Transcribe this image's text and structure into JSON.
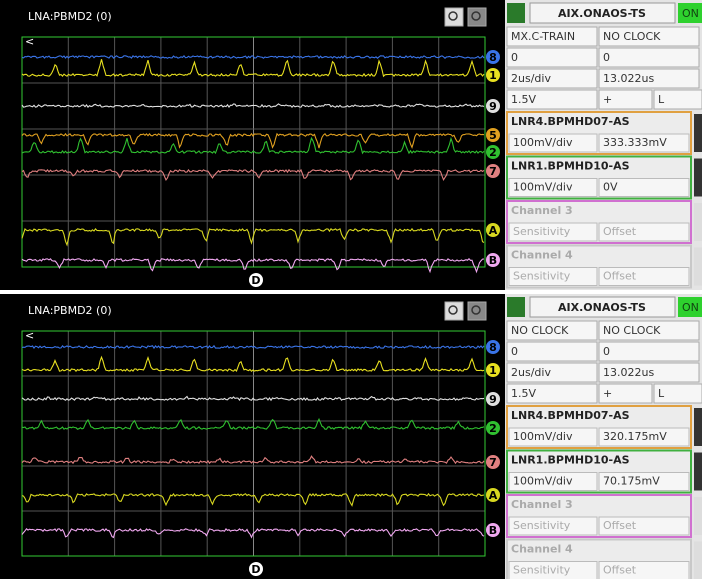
{
  "panels": [
    {
      "scope": {
        "title": "LNA:PBMD2 (0)",
        "trigger": "D",
        "markers": [
          {
            "label": "8",
            "color": "#3a74e8"
          },
          {
            "label": "1",
            "color": "#e8e020"
          },
          {
            "label": "9",
            "color": "#e0e0e0"
          },
          {
            "label": "5",
            "color": "#e0a020"
          },
          {
            "label": "2",
            "color": "#30c030"
          },
          {
            "label": "7",
            "color": "#e08080"
          },
          {
            "label": "A",
            "color": "#d8d820"
          },
          {
            "label": "B",
            "color": "#f0a8f0"
          }
        ]
      },
      "controls": {
        "device": "AIX.ONAOS-TS",
        "status": "ON",
        "rows": [
          [
            "MX.C-TRAIN",
            "NO CLOCK"
          ],
          [
            "0",
            "0"
          ],
          [
            "2us/div",
            "13.022us"
          ],
          [
            "1.5V",
            "+",
            "L"
          ]
        ],
        "channels": [
          {
            "name": "LNR4.BPMHD07-AS",
            "color": "#e0a040",
            "active": true,
            "settings": [
              "100mV/div",
              "333.333mV"
            ]
          },
          {
            "name": "LNR1.BPMHD10-AS",
            "color": "#40b040",
            "active": true,
            "settings": [
              "100mV/div",
              "0V"
            ]
          },
          {
            "name": "Channel 3",
            "color": "#d070d0",
            "active": false,
            "settings": [
              "Sensitivity",
              "Offset"
            ]
          },
          {
            "name": "Channel 4",
            "color": "#c8c8c8",
            "active": false,
            "settings": [
              "Sensitivity",
              "Offset"
            ]
          }
        ]
      }
    },
    {
      "scope": {
        "title": "LNA:PBMD2 (0)",
        "trigger": "D",
        "markers": [
          {
            "label": "8",
            "color": "#3a74e8"
          },
          {
            "label": "1",
            "color": "#e8e020"
          },
          {
            "label": "9",
            "color": "#e0e0e0"
          },
          {
            "label": "2",
            "color": "#30c030"
          },
          {
            "label": "7",
            "color": "#e08080"
          },
          {
            "label": "A",
            "color": "#d8d820"
          },
          {
            "label": "B",
            "color": "#f0a8f0"
          }
        ]
      },
      "controls": {
        "device": "AIX.ONAOS-TS",
        "status": "ON",
        "rows": [
          [
            "NO CLOCK",
            "NO CLOCK"
          ],
          [
            "0",
            "0"
          ],
          [
            "2us/div",
            "13.022us"
          ],
          [
            "1.5V",
            "+",
            "L"
          ]
        ],
        "channels": [
          {
            "name": "LNR4.BPMHD07-AS",
            "color": "#e0a040",
            "active": true,
            "settings": [
              "100mV/div",
              "320.175mV"
            ]
          },
          {
            "name": "LNR1.BPMHD10-AS",
            "color": "#40b040",
            "active": true,
            "settings": [
              "100mV/div",
              "70.175mV"
            ]
          },
          {
            "name": "Channel 3",
            "color": "#d070d0",
            "active": false,
            "settings": [
              "Sensitivity",
              "Offset"
            ]
          },
          {
            "name": "Channel 4",
            "color": "#c8c8c8",
            "active": false,
            "settings": [
              "Sensitivity",
              "Offset"
            ]
          }
        ]
      }
    }
  ]
}
